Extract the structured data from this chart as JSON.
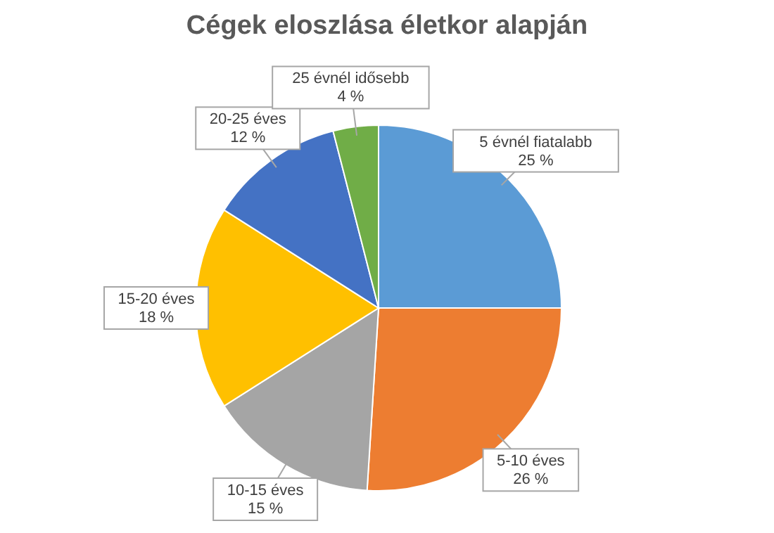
{
  "chart_data": {
    "type": "pie",
    "title": "Cégek eloszlása életkor alapján",
    "categories": [
      "5 évnél fiatalabb",
      "5-10 éves",
      "10-15 éves",
      "15-20 éves",
      "20-25 éves",
      "25 évnél idősebb"
    ],
    "values": [
      25,
      26,
      15,
      18,
      12,
      4
    ],
    "value_labels": [
      "25 %",
      "26 %",
      "15 %",
      "18 %",
      "12 %",
      "4 %"
    ],
    "colors": [
      "#5b9bd5",
      "#ed7d31",
      "#a5a5a5",
      "#ffc000",
      "#4472c4",
      "#70ad47"
    ],
    "legend": false
  }
}
